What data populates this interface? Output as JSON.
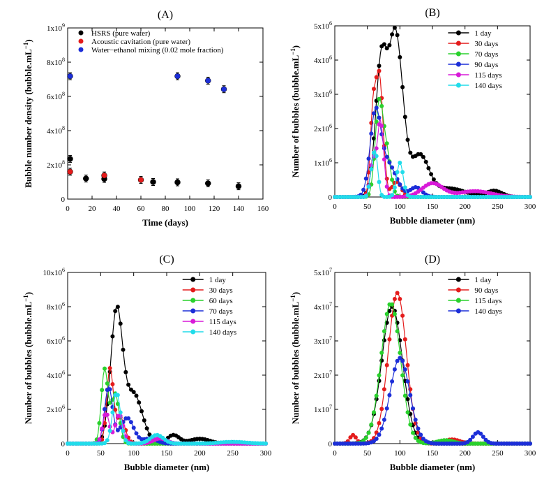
{
  "chart_data": [
    {
      "panel": "(A)",
      "type": "scatter",
      "xlabel": "Time (days)",
      "ylabel": "Bubble number density (bubble.mL",
      "ylabel_sup": "−1",
      "ylabel_close": ")",
      "xlim": [
        0,
        160
      ],
      "ylim": [
        0,
        1000000000
      ],
      "xticks": [
        "0",
        "20",
        "40",
        "60",
        "80",
        "100",
        "120",
        "140",
        "160"
      ],
      "yticks": [
        {
          "base": "0",
          "exp": ""
        },
        {
          "base": "2x10",
          "exp": "8"
        },
        {
          "base": "4x10",
          "exp": "8"
        },
        {
          "base": "6x10",
          "exp": "8"
        },
        {
          "base": "8x10",
          "exp": "8"
        },
        {
          "base": "1x10",
          "exp": "9"
        }
      ],
      "legend_position": "top-right",
      "series": [
        {
          "name": "HSRS (pure water)",
          "color": "#000000",
          "points": [
            [
              2,
              235000000
            ],
            [
              15,
              120000000
            ],
            [
              30,
              118000000
            ],
            [
              70,
              100000000
            ],
            [
              90,
              98000000
            ],
            [
              115,
              92000000
            ],
            [
              140,
              75000000
            ]
          ]
        },
        {
          "name": "Acoustic cavitation (pure water)",
          "color": "#e41b1b",
          "points": [
            [
              2,
              160000000
            ],
            [
              30,
              138000000
            ],
            [
              60,
              112000000
            ]
          ]
        },
        {
          "name": "Water−ethanol mixing (0.02 mole fraction)",
          "color": "#1c2ed8",
          "points": [
            [
              2,
              718000000
            ],
            [
              90,
              718000000
            ],
            [
              115,
              692000000
            ],
            [
              128,
              642000000
            ]
          ]
        }
      ]
    },
    {
      "panel": "(B)",
      "type": "line",
      "xlabel": "Bubble diameter (nm)",
      "ylabel": "Number of bubbles (bubble.mL",
      "ylabel_sup": "−1",
      "ylabel_close": ")",
      "xlim": [
        0,
        300
      ],
      "ylim": [
        0,
        5000000
      ],
      "xticks": [
        "0",
        "50",
        "100",
        "150",
        "200",
        "250",
        "300"
      ],
      "yticks": [
        {
          "base": "0",
          "exp": ""
        },
        {
          "base": "1x10",
          "exp": "6"
        },
        {
          "base": "2x10",
          "exp": "6"
        },
        {
          "base": "3x10",
          "exp": "6"
        },
        {
          "base": "4x10",
          "exp": "6"
        },
        {
          "base": "5x10",
          "exp": "6"
        }
      ],
      "legend_position": "top-right",
      "series": [
        {
          "name": "1 day",
          "color": "#000000",
          "peaks": [
            [
              72,
              4150000,
              9
            ],
            [
              90,
              2900000,
              8
            ],
            [
              100,
              2600000,
              9
            ],
            [
              130,
              1200000,
              14
            ],
            [
              175,
              250000,
              25
            ],
            [
              245,
              180000,
              12
            ]
          ]
        },
        {
          "name": "30 days",
          "color": "#e41b1b",
          "peaks": [
            [
              68,
              3600000,
              6
            ],
            [
              58,
              1900000,
              4
            ],
            [
              95,
              450000,
              7
            ]
          ]
        },
        {
          "name": "70 days",
          "color": "#29d12c",
          "peaks": [
            [
              68,
              2700000,
              6
            ],
            [
              80,
              1200000,
              6
            ]
          ]
        },
        {
          "name": "90 days",
          "color": "#1c2ed8",
          "peaks": [
            [
              62,
              2150000,
              8
            ],
            [
              80,
              1000000,
              14
            ],
            [
              125,
              280000,
              9
            ]
          ]
        },
        {
          "name": "115 days",
          "color": "#d81ad8",
          "peaks": [
            [
              70,
              2250000,
              5
            ],
            [
              58,
              1000000,
              4
            ],
            [
              150,
              400000,
              16
            ],
            [
              215,
              170000,
              25
            ]
          ]
        },
        {
          "name": "140 days",
          "color": "#21dcea",
          "peaks": [
            [
              62,
              1350000,
              4
            ],
            [
              100,
              1000000,
              5
            ],
            [
              55,
              400000,
              3
            ]
          ]
        }
      ]
    },
    {
      "panel": "(C)",
      "type": "line",
      "xlabel": "Bubble diameter (nm)",
      "ylabel": "Number of bubbles (bubble.mL",
      "ylabel_sup": "−1",
      "ylabel_close": ")",
      "xlim": [
        0,
        300
      ],
      "ylim": [
        0,
        10000000
      ],
      "xticks": [
        "0",
        "50",
        "100",
        "150",
        "200",
        "250",
        "300"
      ],
      "yticks": [
        {
          "base": "0",
          "exp": ""
        },
        {
          "base": "2x10",
          "exp": "6"
        },
        {
          "base": "4x10",
          "exp": "6"
        },
        {
          "base": "6x10",
          "exp": "6"
        },
        {
          "base": "8x10",
          "exp": "6"
        },
        {
          "base": "10x10",
          "exp": "6"
        }
      ],
      "legend_position": "top-right",
      "series": [
        {
          "name": "1 day",
          "color": "#000000",
          "peaks": [
            [
              74,
              7650000,
              9
            ],
            [
              100,
              2900000,
              13
            ],
            [
              160,
              500000,
              9
            ],
            [
              200,
              280000,
              15
            ]
          ]
        },
        {
          "name": "30 days",
          "color": "#e41b1b",
          "peaks": [
            [
              64,
              4300000,
              5
            ],
            [
              80,
              1500000,
              7
            ]
          ]
        },
        {
          "name": "60 days",
          "color": "#29d12c",
          "peaks": [
            [
              56,
              4300000,
              5
            ],
            [
              72,
              2900000,
              6
            ]
          ]
        },
        {
          "name": "70 days",
          "color": "#1c2ed8",
          "peaks": [
            [
              62,
              3300000,
              6
            ],
            [
              90,
              1500000,
              10
            ],
            [
              125,
              300000,
              10
            ]
          ]
        },
        {
          "name": "115 days",
          "color": "#d81ad8",
          "peaks": [
            [
              58,
              1800000,
              5
            ],
            [
              78,
              1700000,
              6
            ],
            [
              140,
              300000,
              10
            ]
          ]
        },
        {
          "name": "140 days",
          "color": "#21dcea",
          "peaks": [
            [
              74,
              3000000,
              6
            ],
            [
              135,
              500000,
              10
            ],
            [
              250,
              100000,
              20
            ]
          ]
        }
      ]
    },
    {
      "panel": "(D)",
      "type": "line",
      "xlabel": "Bubble diameter (nm)",
      "ylabel": "Number of bubbles (bubble.mL",
      "ylabel_sup": "−1",
      "ylabel_close": ")",
      "xlim": [
        0,
        300
      ],
      "ylim": [
        0,
        50000000
      ],
      "xticks": [
        "0",
        "50",
        "100",
        "150",
        "200",
        "250",
        "300"
      ],
      "yticks": [
        {
          "base": "0",
          "exp": ""
        },
        {
          "base": "1x10",
          "exp": "7"
        },
        {
          "base": "2x10",
          "exp": "7"
        },
        {
          "base": "3x10",
          "exp": "7"
        },
        {
          "base": "4x10",
          "exp": "7"
        },
        {
          "base": "5x10",
          "exp": "7"
        }
      ],
      "legend_position": "top-right",
      "series": [
        {
          "name": "1 day",
          "color": "#000000",
          "peaks": [
            [
              88,
              40000000,
              16
            ]
          ]
        },
        {
          "name": "90 days",
          "color": "#e41b1b",
          "peaks": [
            [
              96,
              44000000,
              14
            ],
            [
              28,
              2500000,
              5
            ],
            [
              180,
              1200000,
              12
            ]
          ]
        },
        {
          "name": "115 days",
          "color": "#29d12c",
          "peaks": [
            [
              86,
              41000000,
              15
            ],
            [
              170,
              1000000,
              12
            ]
          ]
        },
        {
          "name": "140 days",
          "color": "#1c2ed8",
          "peaks": [
            [
              100,
              25000000,
              15
            ],
            [
              220,
              3300000,
              8
            ]
          ]
        }
      ]
    }
  ]
}
